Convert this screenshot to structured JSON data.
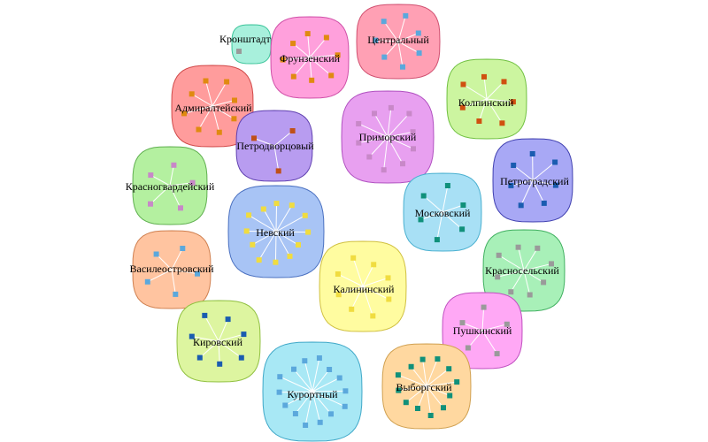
{
  "diagram": {
    "clusters": [
      {
        "id": "kronshtadtsky",
        "label": "Кронштадтский",
        "fill": "#a8f0dc",
        "stroke": "#3cc49a",
        "node_color": "#9a9a9a",
        "node_count": 1
      },
      {
        "id": "frunzensky",
        "label": "Фрунзенский",
        "fill": "#ffa0dc",
        "stroke": "#d050a8",
        "node_color": "#e08a10",
        "node_count": 8
      },
      {
        "id": "tsentralny",
        "label": "Центральный",
        "fill": "#ffa0b4",
        "stroke": "#d05070",
        "node_color": "#5ba8dc",
        "node_count": 7
      },
      {
        "id": "admiralteysky",
        "label": "Адмиралтейский",
        "fill": "#ff9c9c",
        "stroke": "#d04848",
        "node_color": "#e08a10",
        "node_count": 8
      },
      {
        "id": "kolpinsky",
        "label": "Колпинский",
        "fill": "#ccf5a0",
        "stroke": "#70c040",
        "node_color": "#d05010",
        "node_count": 7
      },
      {
        "id": "petrodvortsovy",
        "label": "Петродворцовый",
        "fill": "#b89cf0",
        "stroke": "#6040b0",
        "node_color": "#c05018",
        "node_count": 3
      },
      {
        "id": "primorsky",
        "label": "Приморский",
        "fill": "#e8a0f0",
        "stroke": "#b050c0",
        "node_color": "#c888c8",
        "node_count": 10
      },
      {
        "id": "krasnogvardeysky",
        "label": "Красногвардейский",
        "fill": "#b4f0a0",
        "stroke": "#60b050",
        "node_color": "#c888c8",
        "node_count": 5
      },
      {
        "id": "petrogradsky",
        "label": "Петроградский",
        "fill": "#a8a8f5",
        "stroke": "#4040b0",
        "node_color": "#1a5cb0",
        "node_count": 7
      },
      {
        "id": "nevsky",
        "label": "Невский",
        "fill": "#a8c4f5",
        "stroke": "#4a70c0",
        "node_color": "#f0dc40",
        "node_count": 12
      },
      {
        "id": "moskovsky",
        "label": "Московский",
        "fill": "#a8e0f5",
        "stroke": "#4ab0d0",
        "node_color": "#10907a",
        "node_count": 6
      },
      {
        "id": "vasileostrovsky",
        "label": "Василеостровский",
        "fill": "#ffc4a0",
        "stroke": "#d08050",
        "node_color": "#5ba8dc",
        "node_count": 5
      },
      {
        "id": "krasnoselsky",
        "label": "Красносельский",
        "fill": "#a8f0b8",
        "stroke": "#40b060",
        "node_color": "#9a9a9a",
        "node_count": 8
      },
      {
        "id": "kalininsky",
        "label": "Калининский",
        "fill": "#fffca0",
        "stroke": "#d0c040",
        "node_color": "#f0dc40",
        "node_count": 8
      },
      {
        "id": "pushkinsky",
        "label": "Пушкинский",
        "fill": "#ffa8f5",
        "stroke": "#c050c0",
        "node_color": "#9a9a9a",
        "node_count": 5
      },
      {
        "id": "kirovsky",
        "label": "Кировский",
        "fill": "#ddf5a0",
        "stroke": "#90c040",
        "node_color": "#1a5cb0",
        "node_count": 7
      },
      {
        "id": "kurortny",
        "label": "Курортный",
        "fill": "#a8e8f5",
        "stroke": "#40a8c8",
        "node_color": "#5ba8dc",
        "node_count": 14
      },
      {
        "id": "vyborgsky",
        "label": "Выборгский",
        "fill": "#ffd8a0",
        "stroke": "#d0a050",
        "node_color": "#10907a",
        "node_count": 12
      }
    ]
  }
}
